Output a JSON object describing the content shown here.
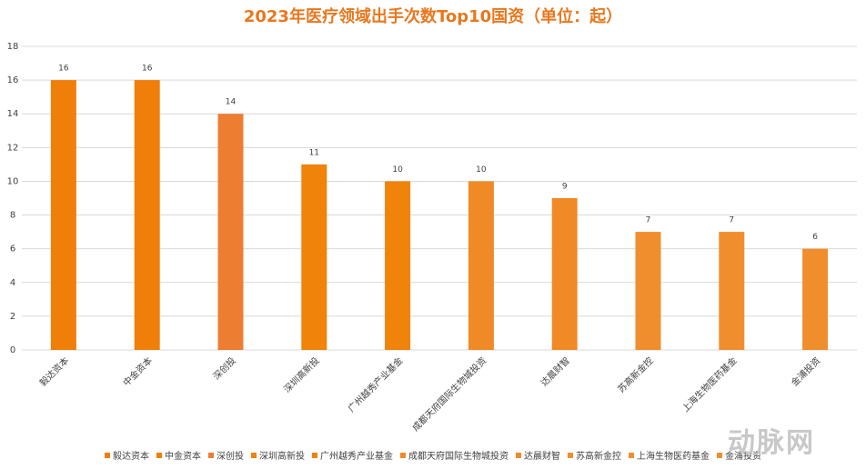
{
  "chart_data": {
    "type": "bar",
    "title": "2023年医疗领域出手次数Top10国资（单位：起）",
    "categories": [
      "毅达资本",
      "中金资本",
      "深创投",
      "深圳高新投",
      "广州越秀产业基金",
      "成都天府国际生物城投资",
      "达晨财智",
      "苏高新金控",
      "上海生物医药基金",
      "金浦投资"
    ],
    "values": [
      16,
      16,
      14,
      11,
      10,
      10,
      9,
      7,
      7,
      6
    ],
    "colors": [
      "#f07f09",
      "#f07f09",
      "#ed7d31",
      "#f08309",
      "#f08309",
      "#f08a26",
      "#f08a26",
      "#f08e2e",
      "#f08e2e",
      "#f08e2e"
    ],
    "ylim": [
      0,
      18
    ],
    "yticks": [
      0,
      2,
      4,
      6,
      8,
      10,
      12,
      14,
      16,
      18
    ],
    "grid": true,
    "watermark": "动脉网"
  }
}
